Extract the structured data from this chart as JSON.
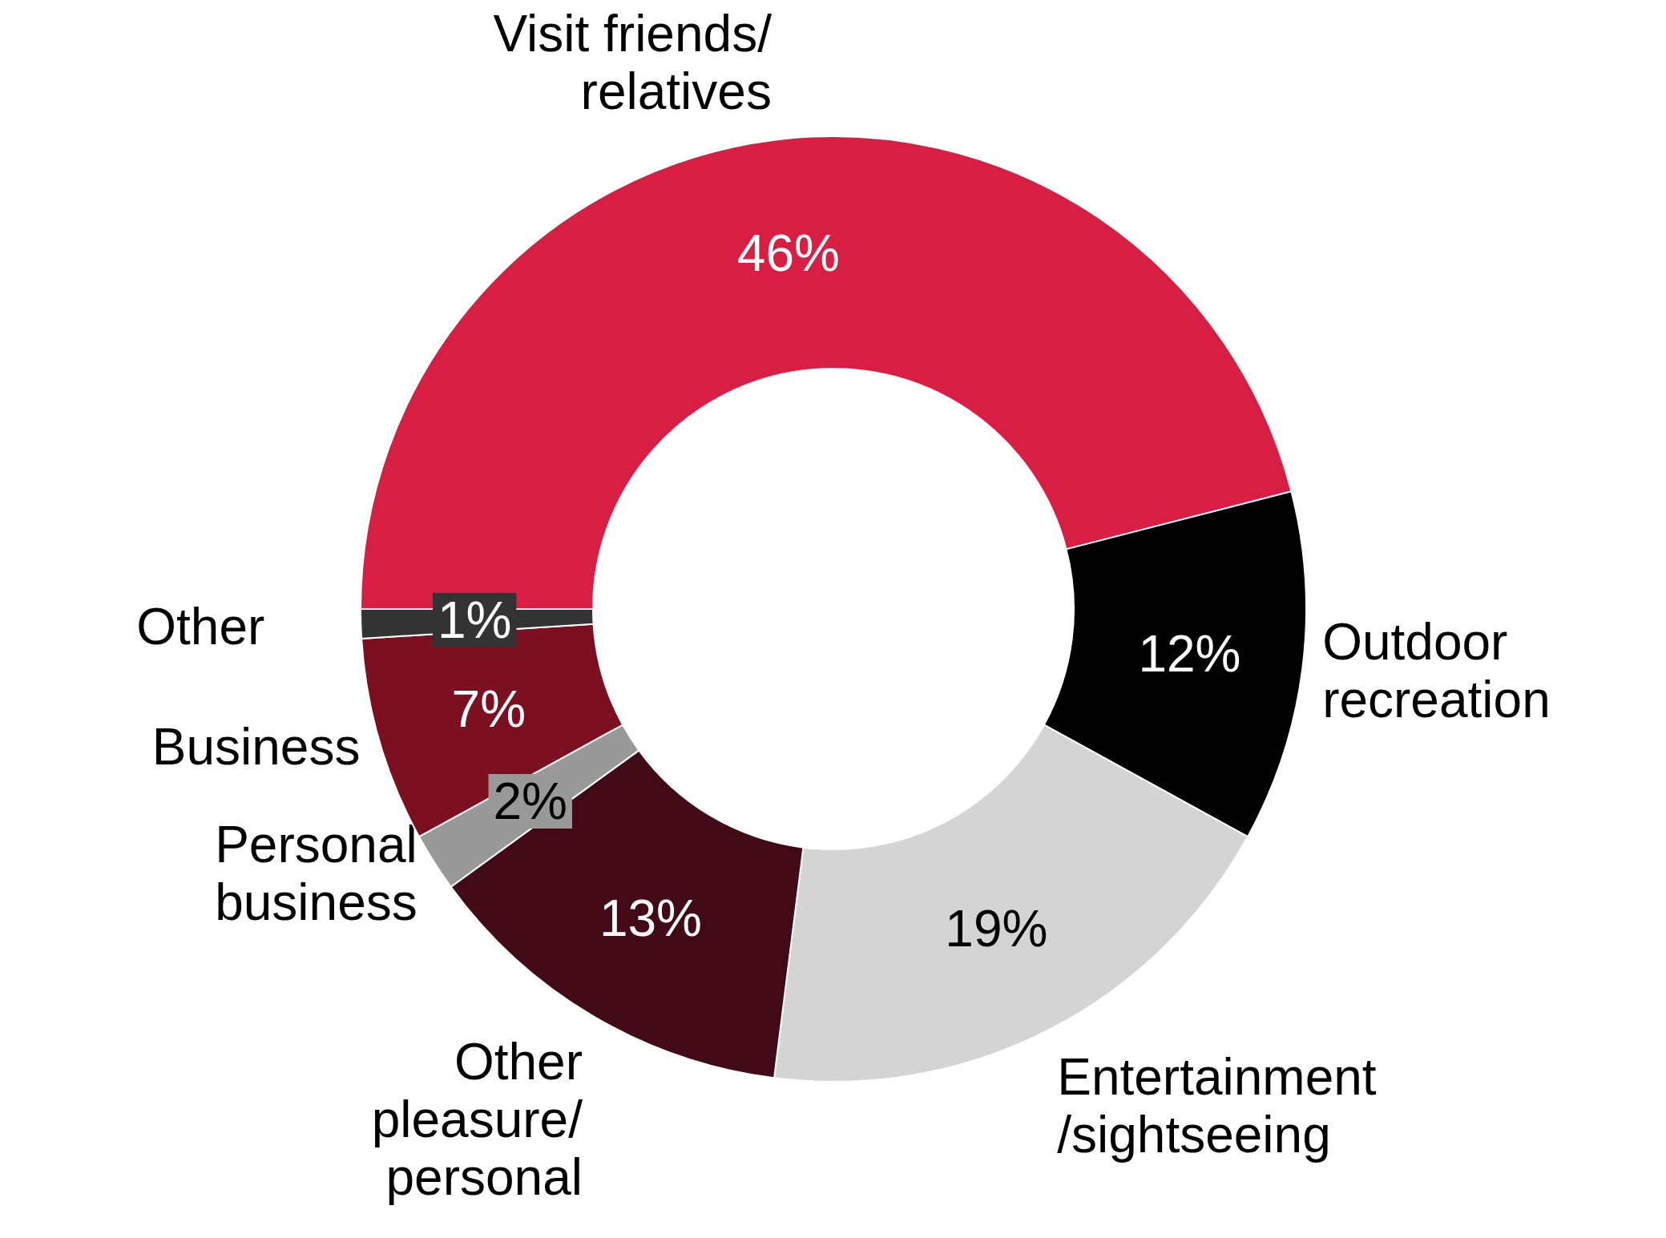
{
  "chart_data": {
    "type": "donut",
    "categories": [
      "Visit friends/\nrelatives",
      "Outdoor\nrecreation",
      "Entertainment\n/sightseeing",
      "Other\npleasure/\npersonal",
      "Personal\nbusiness",
      "Business",
      "Other"
    ],
    "values": [
      46,
      12,
      19,
      13,
      2,
      7,
      1
    ],
    "colors": [
      "#d81e42",
      "#000000",
      "#d4d4d4",
      "#420a16",
      "#999999",
      "#7d1020",
      "#333333"
    ],
    "value_labels": [
      "46%",
      "12%",
      "19%",
      "13%",
      "2%",
      "7%",
      "1%"
    ]
  }
}
